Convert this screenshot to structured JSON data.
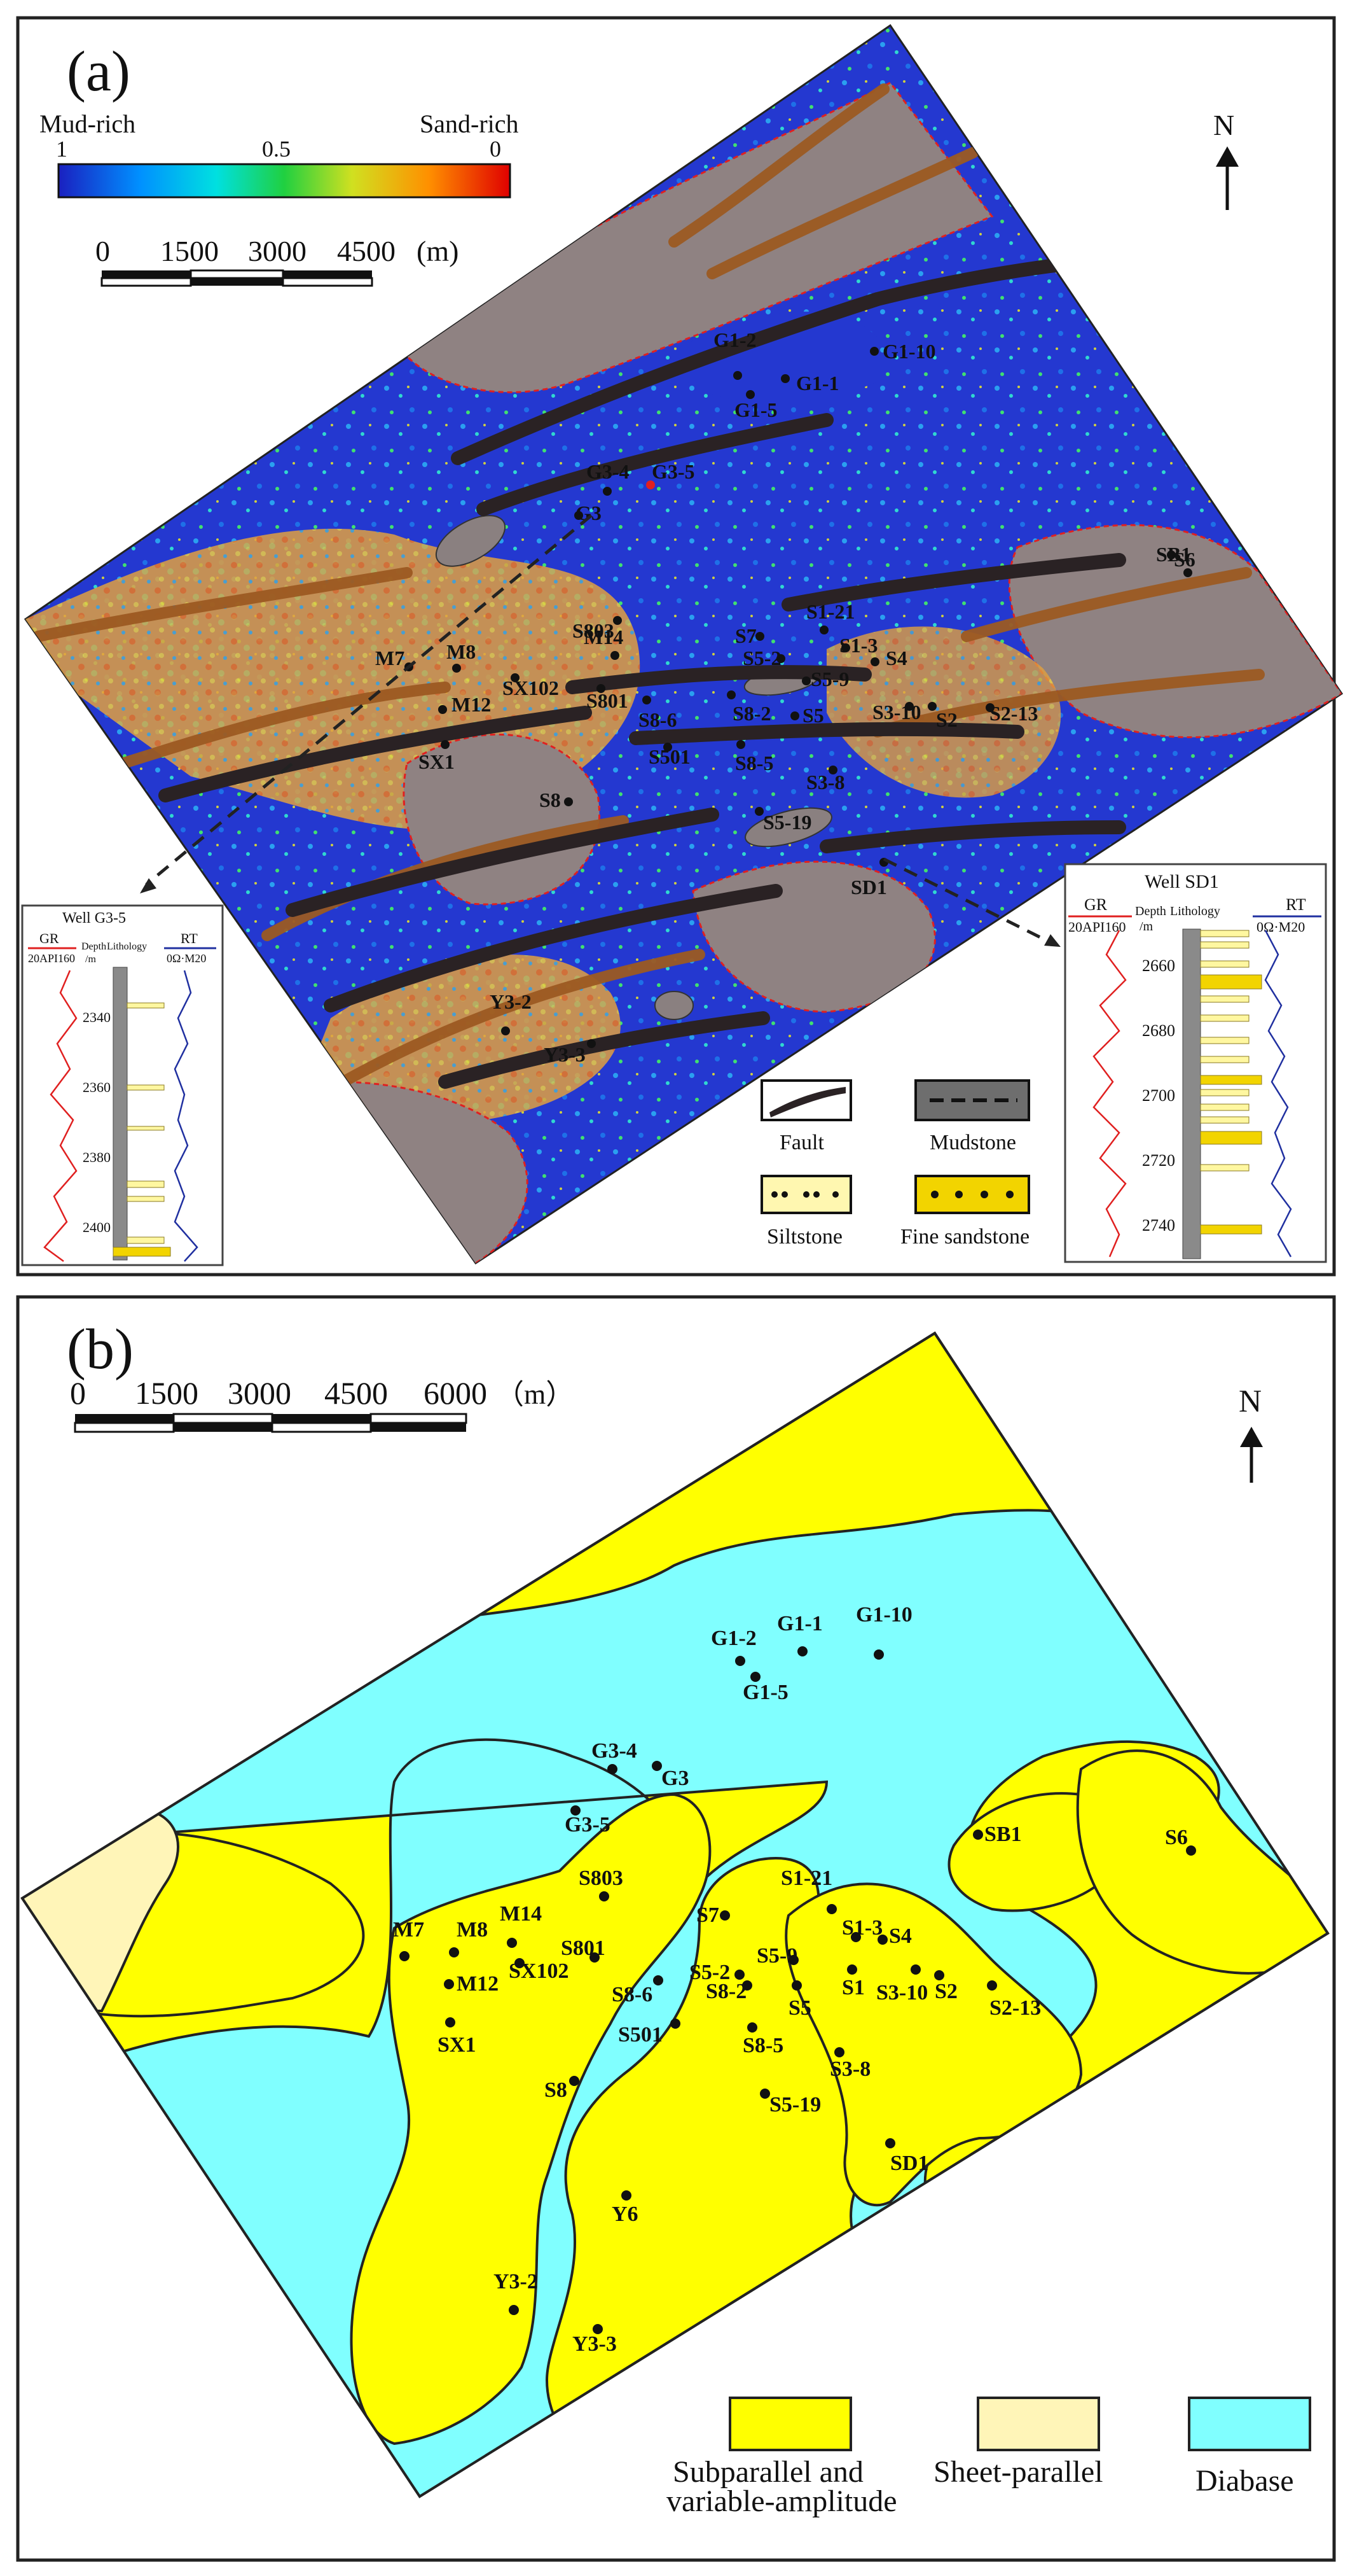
{
  "panel_a": {
    "label": "(a)",
    "colorbar": {
      "left_title": "Mud-rich",
      "right_title": "Sand-rich",
      "ticks": [
        "1",
        "0.5",
        "0"
      ]
    },
    "scalebar": {
      "ticks": [
        "0",
        "1500",
        "3000",
        "4500"
      ],
      "unit": "(m)"
    },
    "north": "N",
    "wells": [
      "G1-2",
      "G1-10",
      "G1-1",
      "G1-5",
      "G3-4",
      "G3-5",
      "G3",
      "SB1",
      "S6",
      "S1-21",
      "S7",
      "S1-3",
      "S5-2",
      "S4",
      "M14",
      "S803",
      "S5-9",
      "M7",
      "M8",
      "SX102",
      "S801",
      "S8-2",
      "S5",
      "S3-10",
      "S2",
      "S2-13",
      "M12",
      "S8-6",
      "SX1",
      "S501",
      "S8-5",
      "S3-8",
      "S8",
      "S5-19",
      "SD1",
      "Y3-2",
      "Y3-3"
    ],
    "legend": {
      "fault": "Fault",
      "mudstone": "Mudstone",
      "siltstone": "Siltstone",
      "fine_sandstone": "Fine sandstone"
    },
    "inset_g35": {
      "title": "Well G3-5",
      "gr": "GR",
      "gr_range": "20API160",
      "depth": "Depth",
      "depth_unit": "/m",
      "lith": "Lithology",
      "rt": "RT",
      "rt_range": "0Ω·M20",
      "depths": [
        "2340",
        "2360",
        "2380",
        "2400"
      ]
    },
    "inset_sd1": {
      "title": "Well SD1",
      "gr": "GR",
      "gr_range": "20API160",
      "depth": "Depth",
      "depth_unit": "/m",
      "lith": "Lithology",
      "rt": "RT",
      "rt_range": "0Ω·M20",
      "depths": [
        "2660",
        "2680",
        "2700",
        "2720",
        "2740"
      ]
    }
  },
  "panel_b": {
    "label": "(b)",
    "scalebar": {
      "ticks": [
        "0",
        "1500",
        "3000",
        "4500",
        "6000"
      ],
      "unit": "（m）"
    },
    "north": "N",
    "wells": [
      "G1-1",
      "G1-10",
      "G1-2",
      "G1-5",
      "G3-4",
      "G3",
      "G3-5",
      "SB1",
      "S6",
      "S803",
      "S1-21",
      "S7",
      "M7",
      "M8",
      "M14",
      "S1-3",
      "S4",
      "S801",
      "S5-9",
      "SX102",
      "S5-2",
      "S1",
      "S3-10",
      "S2",
      "M12",
      "S8-6",
      "S8-2",
      "S5",
      "S2-13",
      "SX1",
      "S501",
      "S8-5",
      "S3-8",
      "S8",
      "S5-19",
      "SD1",
      "Y6",
      "Y3-2",
      "Y3-3"
    ],
    "legend": {
      "subparallel_1": "Subparallel and",
      "subparallel_2": "variable-amplitude",
      "sheet": "Sheet-parallel",
      "diabase": "Diabase"
    }
  },
  "colors": {
    "yellow": "#ffff00",
    "cyan": "#80ffff",
    "pale": "#fff5b8",
    "map_blue": "#2c3fd0",
    "fault": "#2a2224",
    "channel": "#9c5a22",
    "sand_zone": "#8c8080"
  }
}
